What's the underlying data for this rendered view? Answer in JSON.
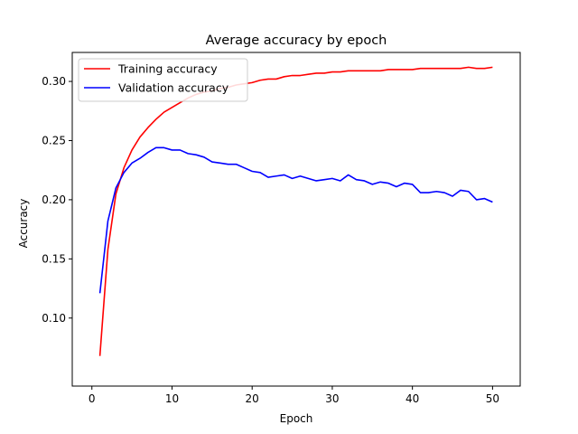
{
  "chart_data": {
    "type": "line",
    "title": "Average accuracy by epoch",
    "xlabel": "Epoch",
    "ylabel": "Accuracy",
    "xlim": [
      -2.45,
      53.45
    ],
    "ylim": [
      0.0425,
      0.3245
    ],
    "xticks": [
      0,
      10,
      20,
      30,
      40,
      50
    ],
    "yticks": [
      0.1,
      0.15,
      0.2,
      0.25,
      0.3
    ],
    "ytick_labels": [
      "0.10",
      "0.15",
      "0.20",
      "0.25",
      "0.30"
    ],
    "grid": false,
    "legend_position": "top-left",
    "x": [
      1,
      2,
      3,
      4,
      5,
      6,
      7,
      8,
      9,
      10,
      11,
      12,
      13,
      14,
      15,
      16,
      17,
      18,
      19,
      20,
      21,
      22,
      23,
      24,
      25,
      26,
      27,
      28,
      29,
      30,
      31,
      32,
      33,
      34,
      35,
      36,
      37,
      38,
      39,
      40,
      41,
      42,
      43,
      44,
      45,
      46,
      47,
      48,
      49,
      50
    ],
    "series": [
      {
        "name": "Training accuracy",
        "color": "#ff0000",
        "values": [
          0.068,
          0.158,
          0.205,
          0.227,
          0.242,
          0.253,
          0.261,
          0.268,
          0.274,
          0.278,
          0.282,
          0.286,
          0.289,
          0.291,
          0.292,
          0.294,
          0.295,
          0.297,
          0.298,
          0.299,
          0.301,
          0.302,
          0.302,
          0.304,
          0.305,
          0.305,
          0.306,
          0.307,
          0.307,
          0.308,
          0.308,
          0.309,
          0.309,
          0.309,
          0.309,
          0.309,
          0.31,
          0.31,
          0.31,
          0.31,
          0.311,
          0.311,
          0.311,
          0.311,
          0.311,
          0.311,
          0.312,
          0.311,
          0.311,
          0.312
        ]
      },
      {
        "name": "Validation accuracy",
        "color": "#0000ff",
        "values": [
          0.121,
          0.182,
          0.21,
          0.223,
          0.231,
          0.235,
          0.24,
          0.244,
          0.244,
          0.242,
          0.242,
          0.239,
          0.238,
          0.236,
          0.232,
          0.231,
          0.23,
          0.23,
          0.227,
          0.224,
          0.223,
          0.219,
          0.22,
          0.221,
          0.218,
          0.22,
          0.218,
          0.216,
          0.217,
          0.218,
          0.216,
          0.221,
          0.217,
          0.216,
          0.213,
          0.215,
          0.214,
          0.211,
          0.214,
          0.213,
          0.206,
          0.206,
          0.207,
          0.206,
          0.203,
          0.208,
          0.207,
          0.2,
          0.201,
          0.198
        ]
      }
    ]
  }
}
